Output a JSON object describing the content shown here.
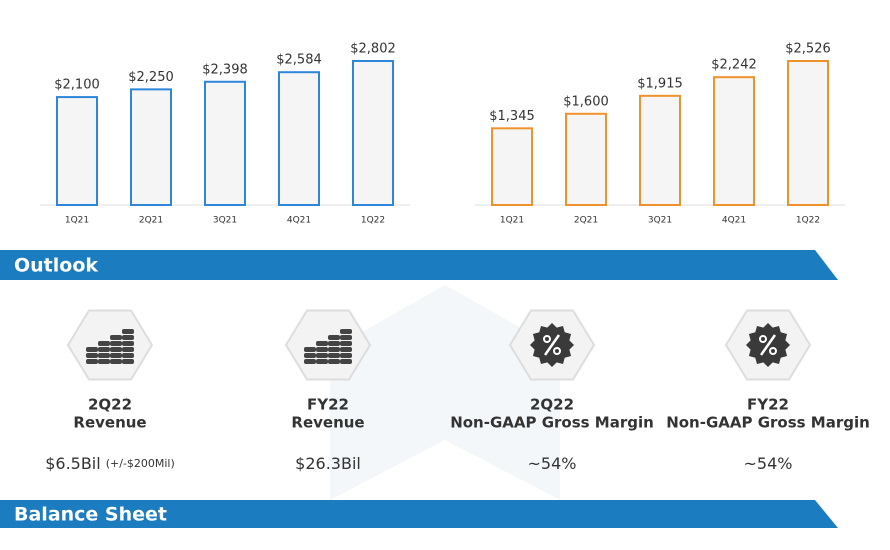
{
  "chart_data": [
    {
      "type": "bar",
      "categories": [
        "1Q21",
        "2Q21",
        "3Q21",
        "4Q21",
        "1Q22"
      ],
      "values": [
        2100,
        2250,
        2398,
        2584,
        2802
      ],
      "value_labels": [
        "$2,100",
        "$2,250",
        "$2,398",
        "$2,584",
        "$2,802"
      ],
      "color": "#2e86d9"
    },
    {
      "type": "bar",
      "categories": [
        "1Q21",
        "2Q21",
        "3Q21",
        "4Q21",
        "1Q22"
      ],
      "values": [
        1345,
        1600,
        1915,
        2242,
        2526
      ],
      "value_labels": [
        "$1,345",
        "$1,600",
        "$1,915",
        "$2,242",
        "$2,526"
      ],
      "color": "#f0922b"
    }
  ],
  "outlook": {
    "title": "Outlook",
    "items": [
      {
        "period": "2Q22",
        "metric": "Revenue",
        "value": "$6.5Bil",
        "note": "(+/-$200Mil)",
        "icon": "coins"
      },
      {
        "period": "FY22",
        "metric": "Revenue",
        "value": "$26.3Bil",
        "icon": "coins"
      },
      {
        "period": "2Q22",
        "metric": "Non-GAAP Gross Margin",
        "value": "~54%",
        "icon": "percent"
      },
      {
        "period": "FY22",
        "metric": "Non-GAAP Gross Margin",
        "value": "~54%",
        "icon": "percent"
      }
    ]
  },
  "balance_sheet": {
    "title": "Balance Sheet"
  }
}
